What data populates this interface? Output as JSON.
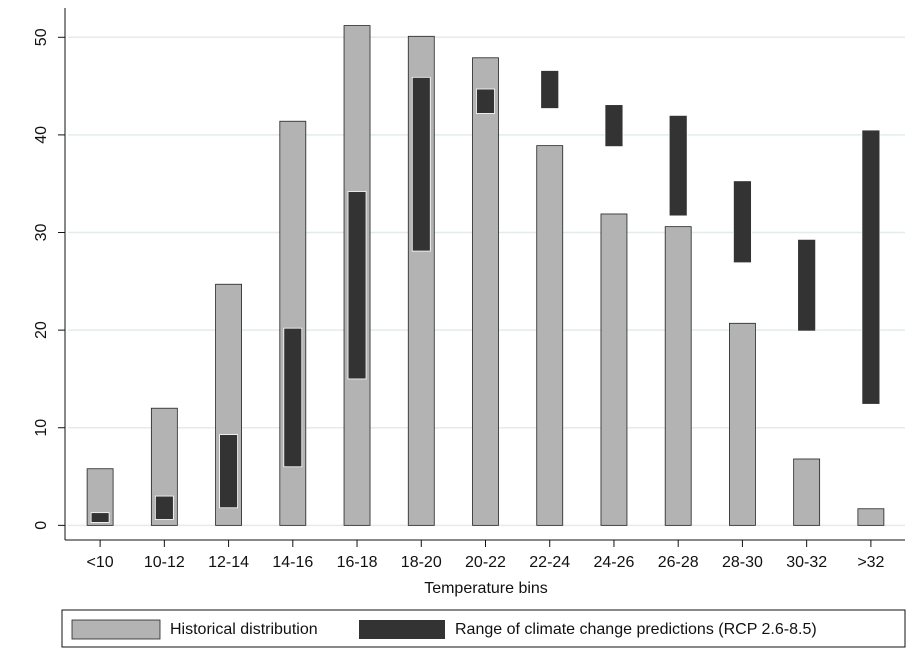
{
  "chart_data": {
    "type": "bar",
    "xlabel": "Temperature bins",
    "categories": [
      "<10",
      "10-12",
      "12-14",
      "14-16",
      "16-18",
      "18-20",
      "20-22",
      "22-24",
      "24-26",
      "26-28",
      "28-30",
      "30-32",
      ">32"
    ],
    "series": [
      {
        "name": "Historical distribution",
        "color": "#b3b3b3",
        "values": [
          5.8,
          12,
          24.7,
          41.4,
          51.2,
          50.1,
          47.9,
          38.9,
          31.9,
          30.6,
          20.7,
          6.8,
          1.7
        ]
      },
      {
        "name": "Range of climate change predictions (RCP 2.6-8.5)",
        "color": "#333333",
        "low": [
          0.3,
          0.6,
          1.8,
          6,
          15,
          28.1,
          42.2,
          42.7,
          38.8,
          31.7,
          26.9,
          19.9,
          12.4
        ],
        "high": [
          1.3,
          3,
          9.3,
          20.2,
          34.2,
          45.9,
          44.7,
          46.6,
          43.1,
          42,
          35.3,
          29.3,
          40.5
        ]
      }
    ],
    "ylim": [
      -1.5,
      53
    ],
    "yticks": [
      0,
      10,
      20,
      30,
      40,
      50
    ],
    "grid": true
  }
}
